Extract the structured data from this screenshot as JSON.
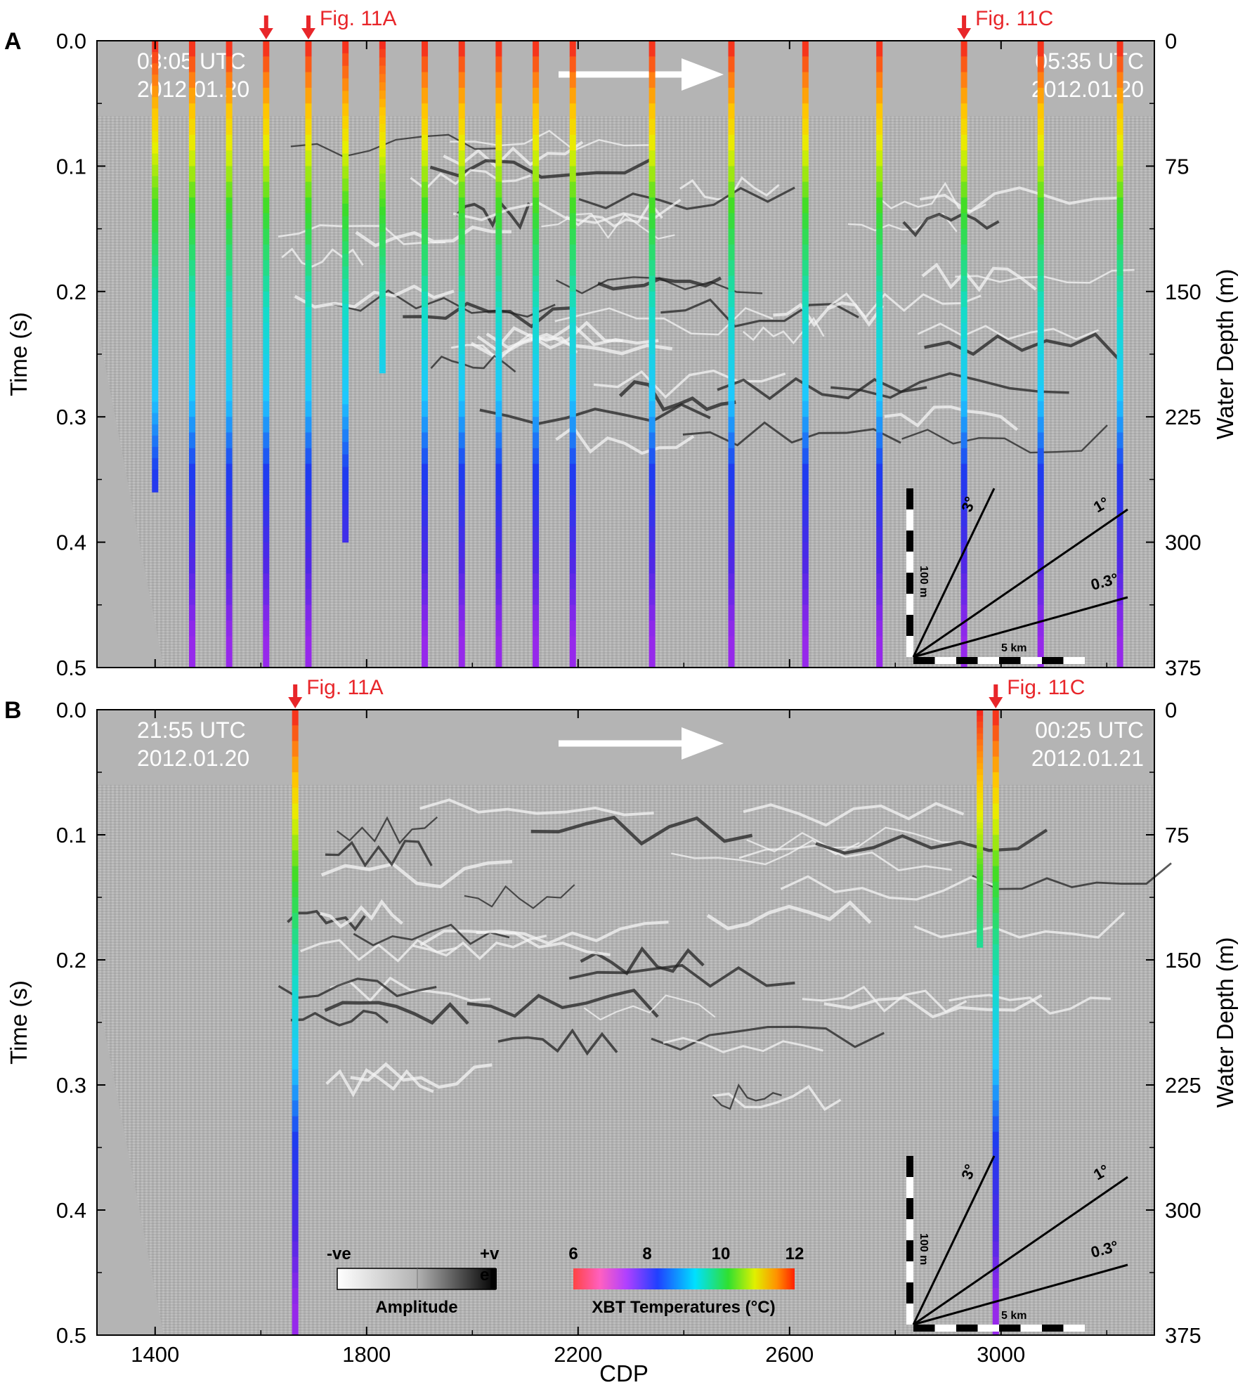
{
  "panels": [
    {
      "letter": "A",
      "start_time": "03:05 UTC",
      "start_date": "2012.01.20",
      "end_time": "05:35 UTC",
      "end_date": "2012.01.20",
      "fig_markers": [
        {
          "label": "Fig. 11A",
          "cdp": 1690,
          "arrows": [
            1610,
            1690
          ]
        },
        {
          "label": "Fig. 11C",
          "cdp": 2930,
          "arrows": [
            2930
          ]
        }
      ],
      "xbt_casts": [
        {
          "cdp": 1400,
          "max_time": 0.36
        },
        {
          "cdp": 1470,
          "max_time": 0.5
        },
        {
          "cdp": 1540,
          "max_time": 0.5
        },
        {
          "cdp": 1610,
          "max_time": 0.5
        },
        {
          "cdp": 1690,
          "max_time": 0.5
        },
        {
          "cdp": 1760,
          "max_time": 0.4
        },
        {
          "cdp": 1830,
          "max_time": 0.265
        },
        {
          "cdp": 1910,
          "max_time": 0.5
        },
        {
          "cdp": 1980,
          "max_time": 0.5
        },
        {
          "cdp": 2050,
          "max_time": 0.5
        },
        {
          "cdp": 2120,
          "max_time": 0.5
        },
        {
          "cdp": 2190,
          "max_time": 0.5
        },
        {
          "cdp": 2340,
          "max_time": 0.5
        },
        {
          "cdp": 2490,
          "max_time": 0.5
        },
        {
          "cdp": 2630,
          "max_time": 0.5
        },
        {
          "cdp": 2770,
          "max_time": 0.5
        },
        {
          "cdp": 2930,
          "max_time": 0.5
        },
        {
          "cdp": 3075,
          "max_time": 0.5
        },
        {
          "cdp": 3225,
          "max_time": 0.5
        }
      ]
    },
    {
      "letter": "B",
      "start_time": "21:55 UTC",
      "start_date": "2012.01.20",
      "end_time": "00:25 UTC",
      "end_date": "2012.01.21",
      "fig_markers": [
        {
          "label": "Fig. 11A",
          "cdp": 1665,
          "arrows": [
            1665
          ]
        },
        {
          "label": "Fig. 11C",
          "cdp": 2990,
          "arrows": [
            2990
          ]
        }
      ],
      "xbt_casts": [
        {
          "cdp": 1665,
          "max_time": 0.5
        },
        {
          "cdp": 2960,
          "max_time": 0.19
        },
        {
          "cdp": 2990,
          "max_time": 0.5
        }
      ]
    }
  ],
  "axes": {
    "x_title": "CDP",
    "x_ticks": [
      "1400",
      "1800",
      "2200",
      "2600",
      "3000"
    ],
    "x_tick_values": [
      1400,
      1800,
      2200,
      2600,
      3000
    ],
    "x_range": [
      1290,
      3290
    ],
    "y_left_title": "Time (s)",
    "y_left_ticks": [
      "0.0",
      "0.1",
      "0.2",
      "0.3",
      "0.4",
      "0.5"
    ],
    "y_left_range": [
      0,
      0.5
    ],
    "y_right_title": "Water Depth (m)",
    "y_right_ticks": [
      "0",
      "75",
      "150",
      "225",
      "300",
      "375"
    ]
  },
  "scale_inset": {
    "vertical_label": "100 m",
    "horizontal_label": "5 km",
    "angles": [
      "3°",
      "1°",
      "0.3°"
    ]
  },
  "legends": {
    "amplitude": {
      "neg": "-ve",
      "pos": "+v",
      "pos_tail": "e",
      "title": "Amplitude"
    },
    "temperature": {
      "title": "XBT Temperatures (°C)",
      "ticks": [
        "6",
        "8",
        "10",
        "12"
      ],
      "range": [
        6,
        12
      ]
    }
  },
  "colors": {
    "fig_marker": "#e8262a",
    "background": "#b4b4b4",
    "arrow": "#ffffff"
  }
}
